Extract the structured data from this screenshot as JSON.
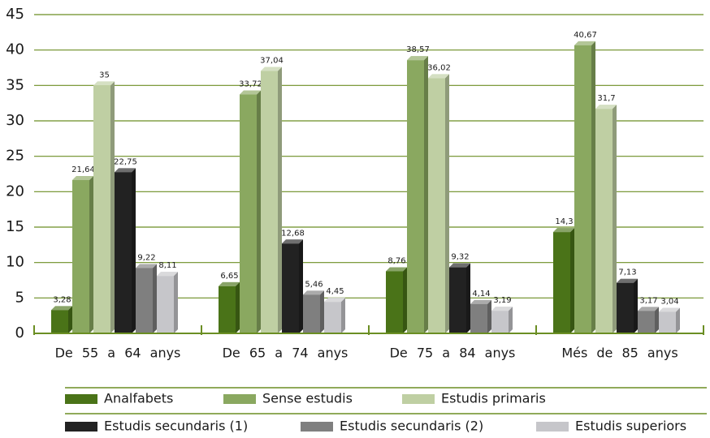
{
  "chart_data": {
    "type": "bar",
    "categories": [
      "De 55 a 64 anys",
      "De 65 a 74 anys",
      "De 75 a 84 anys",
      "Més de 85 anys"
    ],
    "series": [
      {
        "name": "Analfabets",
        "color": "#4a7318",
        "values": [
          3.28,
          6.65,
          8.76,
          14.3
        ],
        "value_labels": [
          "3,28",
          "6,65",
          "8,76",
          "14,3"
        ]
      },
      {
        "name": "Sense estudis",
        "color": "#8aa860",
        "values": [
          21.64,
          33.72,
          38.57,
          40.67
        ],
        "value_labels": [
          "21,64",
          "33,72",
          "38,57",
          "40,67"
        ]
      },
      {
        "name": "Estudis primaris",
        "color": "#bfcfa3",
        "values": [
          35,
          37.04,
          36.02,
          31.7
        ],
        "value_labels": [
          "35",
          "37,04",
          "36,02",
          "31,7"
        ]
      },
      {
        "name": "Estudis secundaris (1)",
        "color": "#222222",
        "values": [
          22.75,
          12.68,
          9.32,
          7.13
        ],
        "value_labels": [
          "22,75",
          "12,68",
          "9,32",
          "7,13"
        ]
      },
      {
        "name": "Estudis secundaris (2)",
        "color": "#7f7f7f",
        "values": [
          9.22,
          5.46,
          4.14,
          3.17
        ],
        "value_labels": [
          "9,22",
          "5,46",
          "4,14",
          "3,17"
        ]
      },
      {
        "name": "Estudis superiors",
        "color": "#c6c6ca",
        "values": [
          8.11,
          4.45,
          3.19,
          3.04
        ],
        "value_labels": [
          "8,11",
          "4,45",
          "3,19",
          "3,04"
        ]
      }
    ],
    "ylim": [
      0,
      45
    ],
    "yticks": [
      0,
      5,
      10,
      15,
      20,
      25,
      30,
      35,
      40,
      45
    ],
    "grid": true
  }
}
